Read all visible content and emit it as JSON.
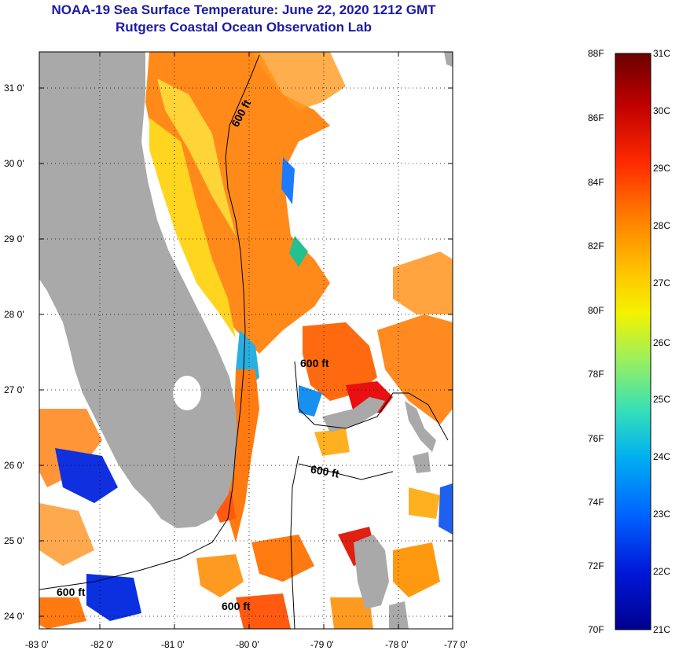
{
  "title": "NOAA-19 Sea Surface Temperature:  June 22, 2020 1212 GMT",
  "subtitle": "Rutgers Coastal Ocean Observation Lab",
  "map": {
    "lon_labels": [
      "-83 0'",
      "-82 0'",
      "-81 0'",
      "-80 0'",
      "-79 0'",
      "-78 0'",
      "-77 0'"
    ],
    "lat_labels": [
      "31 0'",
      "30 0'",
      "29 0'",
      "28 0'",
      "27 0'",
      "26 0'",
      "25 0'",
      "24 0'"
    ],
    "contour_labels": [
      "600 ft",
      "600 ft",
      "600 ft",
      "600 ft",
      "600 ft"
    ],
    "land_color": "#a9a9a9",
    "cloud_color": "#ffffff"
  },
  "colorbar": {
    "fahrenheit_labels": [
      "88F",
      "86F",
      "84F",
      "82F",
      "80F",
      "78F",
      "76F",
      "74F",
      "72F",
      "70F"
    ],
    "celsius_labels": [
      "31C",
      "30C",
      "29C",
      "28C",
      "27C",
      "26C",
      "25C",
      "24C",
      "23C",
      "22C",
      "21C"
    ],
    "colors": [
      "#6b0000",
      "#c00000",
      "#ff2a00",
      "#ff7a00",
      "#ffc400",
      "#f4f200",
      "#9cf05c",
      "#35e0b8",
      "#00b0f0",
      "#0064ff",
      "#0018d8",
      "#000090"
    ]
  }
}
